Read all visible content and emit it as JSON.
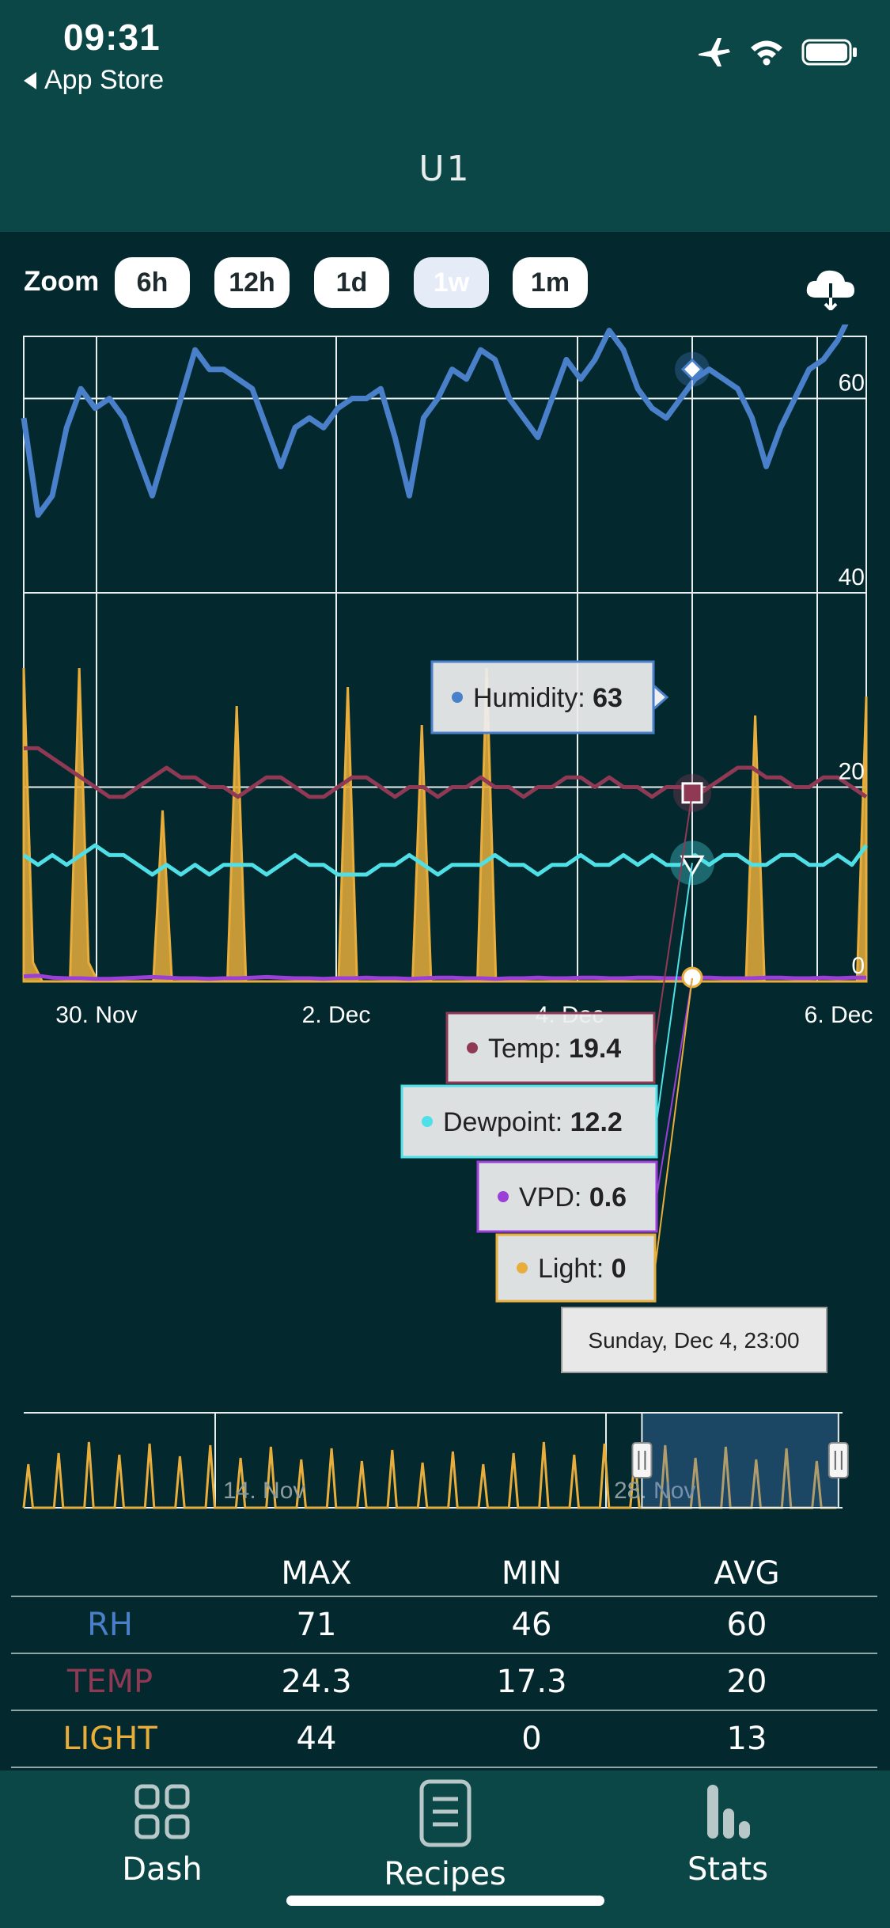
{
  "status_bar": {
    "time": "09:31",
    "back_label": "App Store"
  },
  "header": {
    "title": "U1"
  },
  "zoom": {
    "label": "Zoom",
    "options": [
      "6h",
      "12h",
      "1d",
      "1w",
      "1m"
    ],
    "selected": "1w"
  },
  "icons": {
    "download": "cloud-download-icon",
    "airplane": "airplane-icon",
    "wifi": "wifi-icon",
    "battery": "battery-icon",
    "dash": "grid-icon",
    "recipes": "document-icon",
    "stats": "bar-chart-icon"
  },
  "colors": {
    "humidity": "#4a7fc9",
    "temp": "#8f3955",
    "dewpoint": "#4ee0e6",
    "vpd": "#9b3fd8",
    "light": "#e8ad3a",
    "background": "#03292e",
    "bar": "#0c4747"
  },
  "chart_data": {
    "type": "line",
    "y_ticks": [
      "0",
      "20",
      "40",
      "60",
      "80"
    ],
    "ylim": [
      0,
      100
    ],
    "x_ticks": [
      "30. Nov",
      "2. Dec",
      "4. Dec",
      "6. Dec"
    ],
    "series": [
      {
        "name": "Humidity",
        "color": "#4a7fc9",
        "values": [
          58,
          48,
          50,
          57,
          61,
          59,
          60,
          58,
          54,
          50,
          55,
          60,
          65,
          63,
          63,
          62,
          61,
          57,
          53,
          57,
          58,
          57,
          59,
          60,
          60,
          61,
          56,
          50,
          58,
          60,
          63,
          62,
          65,
          64,
          60,
          58,
          56,
          60,
          64,
          62,
          64,
          67,
          65,
          61,
          59,
          58,
          60,
          62,
          63,
          62,
          61,
          58,
          53,
          57,
          60,
          63,
          64,
          66,
          69,
          70
        ]
      },
      {
        "name": "Temp",
        "color": "#8f3955",
        "values": [
          24,
          24,
          23,
          22,
          21,
          20,
          19,
          19,
          20,
          21,
          22,
          21,
          21,
          20,
          20,
          19,
          20,
          21,
          21,
          20,
          19,
          19,
          20,
          21,
          21,
          20,
          19,
          20,
          20,
          19,
          20,
          20,
          21,
          20,
          20,
          19,
          20,
          20,
          21,
          21,
          20,
          21,
          20,
          20,
          19,
          20,
          20,
          19,
          20,
          21,
          22,
          22,
          21,
          21,
          20,
          20,
          21,
          21,
          20,
          19
        ]
      },
      {
        "name": "Dewpoint",
        "color": "#4ee0e6",
        "values": [
          13,
          12,
          13,
          12,
          13,
          14,
          13,
          13,
          12,
          11,
          12,
          11,
          12,
          11,
          12,
          12,
          12,
          11,
          12,
          13,
          12,
          12,
          11,
          11,
          11,
          12,
          12,
          13,
          12,
          11,
          12,
          12,
          12,
          13,
          12,
          12,
          11,
          12,
          12,
          13,
          12,
          12,
          13,
          12,
          13,
          12,
          12,
          13,
          12,
          13,
          13,
          12,
          12,
          13,
          13,
          12,
          12,
          13,
          12,
          14
        ]
      },
      {
        "name": "VPD",
        "color": "#9b3fd8",
        "values": [
          0.8,
          0.9,
          0.6,
          0.5,
          0.5,
          0.4,
          0.4,
          0.5,
          0.6,
          0.7,
          0.6,
          0.5,
          0.5,
          0.4,
          0.5,
          0.5,
          0.6,
          0.7,
          0.6,
          0.5,
          0.5,
          0.4,
          0.5,
          0.5,
          0.6,
          0.5,
          0.5,
          0.4,
          0.5,
          0.6,
          0.6,
          0.5,
          0.5,
          0.4,
          0.5,
          0.5,
          0.6,
          0.5,
          0.5,
          0.6,
          0.6,
          0.5,
          0.5,
          0.6,
          0.6,
          0.5,
          0.5,
          0.6,
          0.6,
          0.5,
          0.5,
          0.5,
          0.6,
          0.6,
          0.5,
          0.5,
          0.6,
          0.5,
          0.6,
          0.6
        ]
      },
      {
        "name": "Light",
        "color": "#e8ad3a",
        "values": [
          33,
          2,
          0,
          0,
          0,
          0,
          33,
          2,
          0,
          0,
          0,
          0,
          0,
          0,
          0,
          18,
          0,
          0,
          0,
          0,
          0,
          0,
          0,
          29,
          0,
          0,
          0,
          0,
          0,
          0,
          0,
          0,
          0,
          0,
          0,
          31,
          0,
          0,
          0,
          0,
          0,
          0,
          0,
          27,
          0,
          0,
          0,
          0,
          0,
          0,
          33,
          0,
          0,
          0,
          0,
          0,
          0,
          0,
          0,
          0,
          0,
          0,
          0,
          0,
          0,
          0,
          0,
          0,
          0,
          0,
          0,
          0,
          0,
          0,
          0,
          0,
          0,
          0,
          0,
          28,
          0,
          0,
          0,
          0,
          0,
          0,
          0,
          0,
          0,
          0,
          0,
          30
        ]
      }
    ],
    "tooltip": {
      "date": "Sunday, Dec 4, 23:00",
      "items": [
        {
          "label": "Humidity:",
          "value": "63"
        },
        {
          "label": "Temp:",
          "value": "19.4"
        },
        {
          "label": "Dewpoint:",
          "value": "12.2"
        },
        {
          "label": "VPD:",
          "value": "0.6"
        },
        {
          "label": "Light:",
          "value": "0"
        }
      ]
    },
    "navigator": {
      "labels": [
        "14. Nov",
        "28. Nov"
      ],
      "selected_range_fraction": [
        0.755,
        0.995
      ]
    }
  },
  "stats_table": {
    "headers": [
      "MAX",
      "MIN",
      "AVG"
    ],
    "rows": [
      {
        "label": "RH",
        "color": "#4a7fc9",
        "max": "71",
        "min": "46",
        "avg": "60"
      },
      {
        "label": "TEMP",
        "color": "#8f3955",
        "max": "24.3",
        "min": "17.3",
        "avg": "20"
      },
      {
        "label": "LIGHT",
        "color": "#e8ad3a",
        "max": "44",
        "min": "0",
        "avg": "13"
      }
    ]
  },
  "tabs": [
    {
      "label": "Dash",
      "icon": "grid-icon"
    },
    {
      "label": "Recipes",
      "icon": "document-icon"
    },
    {
      "label": "Stats",
      "icon": "bar-chart-icon"
    }
  ]
}
